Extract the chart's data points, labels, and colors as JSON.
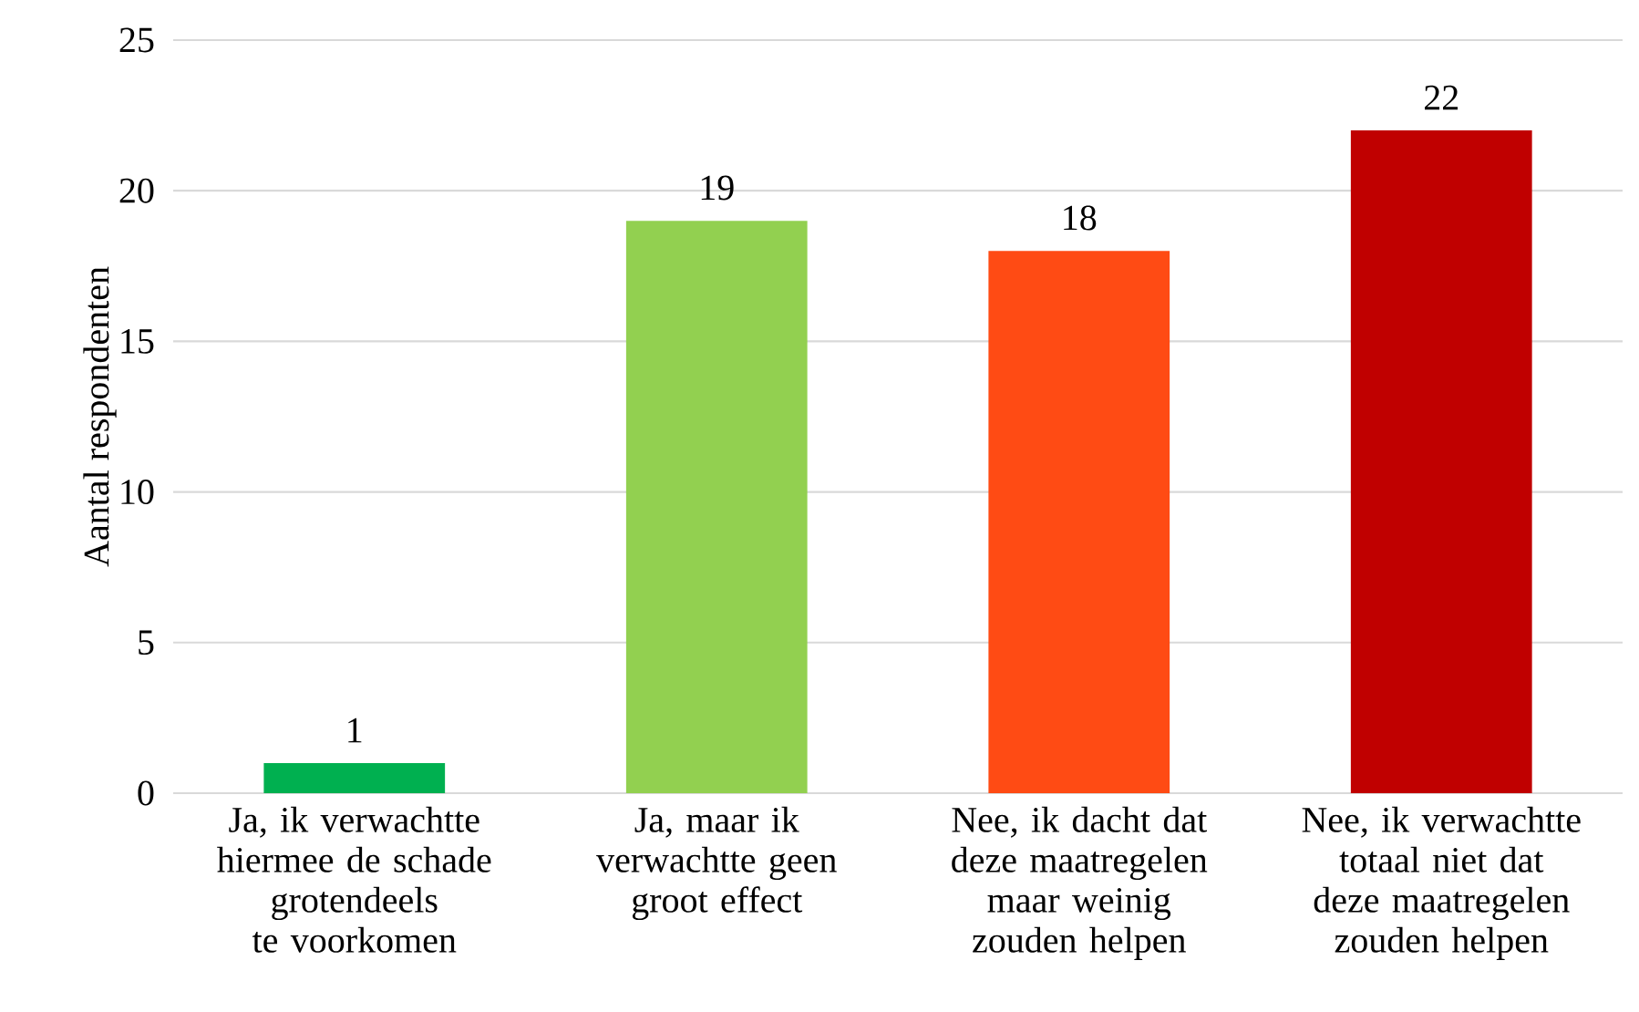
{
  "chart_data": {
    "type": "bar",
    "categories": [
      "Ja, ik verwachtte hiermee de schade grotendeels te voorkomen",
      "Ja, maar ik verwachtte geen groot effect",
      "Nee, ik dacht dat deze maatregelen maar weinig zouden helpen",
      "Nee, ik verwachtte totaal niet dat deze maatregelen zouden helpen"
    ],
    "values": [
      1,
      19,
      18,
      22
    ],
    "colors": [
      "#00b050",
      "#92d050",
      "#ff4b14",
      "#c00000"
    ],
    "ylabel": "Aantal respondenten",
    "ylim": [
      0,
      25
    ],
    "yticks": [
      0,
      5,
      10,
      15,
      20,
      25
    ],
    "grid": "y",
    "data_labels": true
  }
}
